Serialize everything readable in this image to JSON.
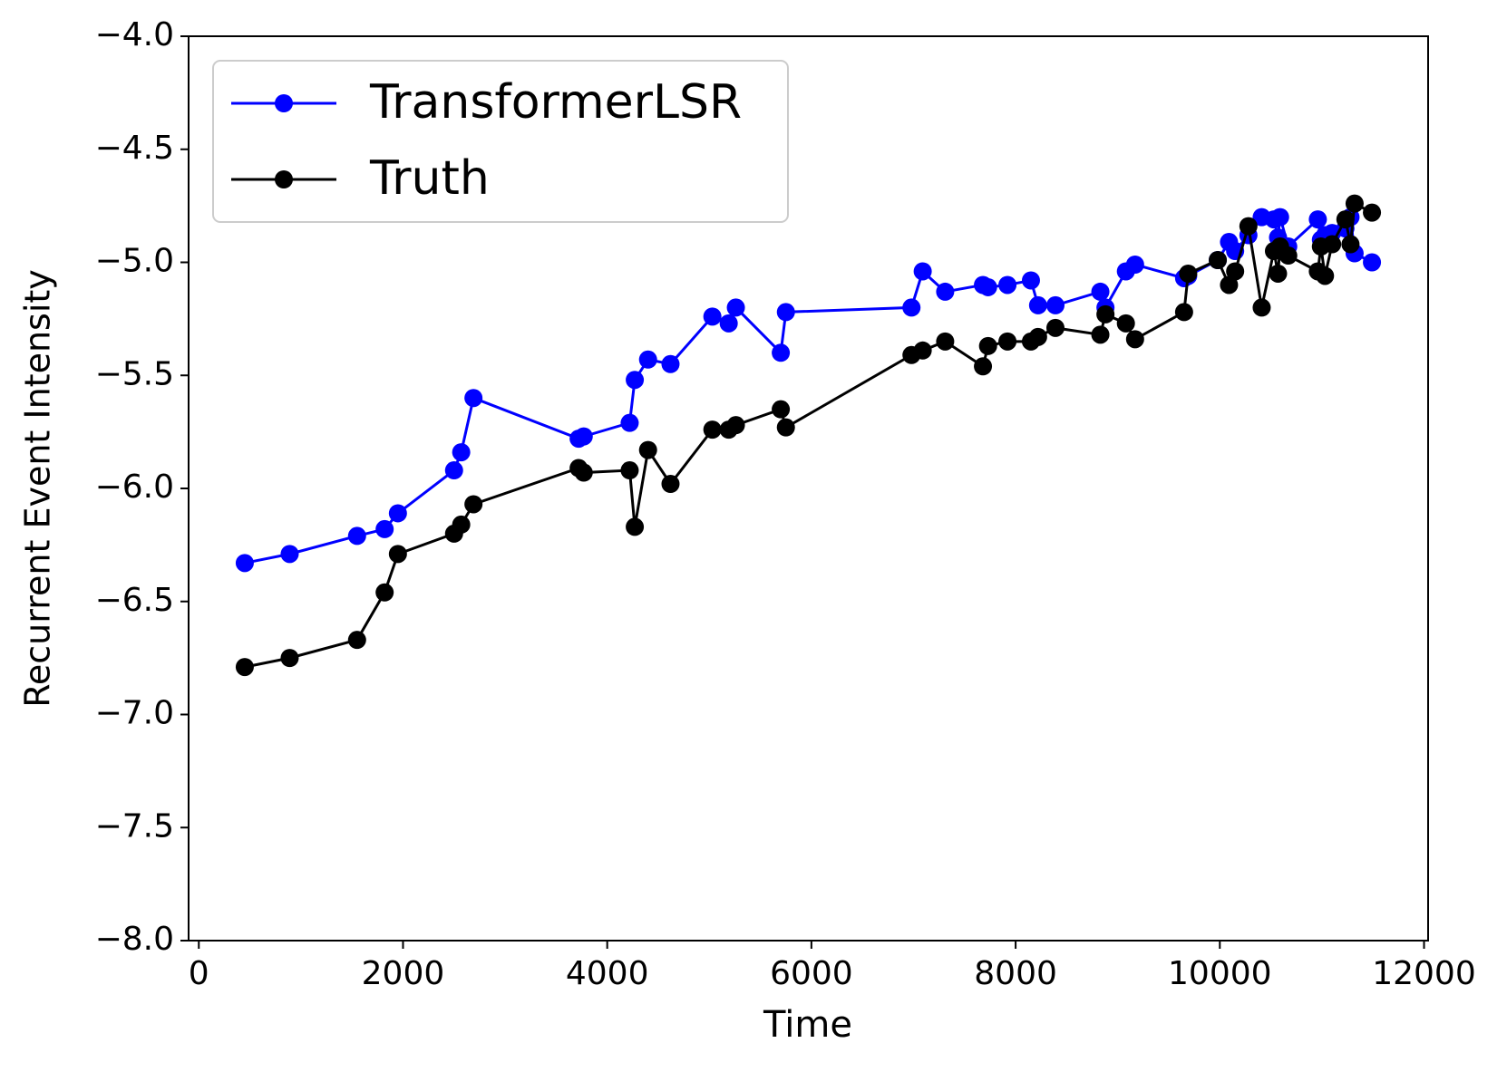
{
  "chart_data": {
    "type": "line",
    "x_label": "Time",
    "y_label": "Recurrent Event Intensity",
    "x": [
      450,
      890,
      1550,
      1820,
      1950,
      2500,
      2570,
      2690,
      3720,
      3770,
      4220,
      4270,
      4400,
      4620,
      5030,
      5190,
      5260,
      5700,
      5750,
      6980,
      7090,
      7310,
      7680,
      7730,
      7920,
      8150,
      8220,
      8390,
      8830,
      8880,
      9080,
      9170,
      9650,
      9690,
      9980,
      10090,
      10150,
      10280,
      10410,
      10530,
      10570,
      10590,
      10670,
      10960,
      10990,
      11030,
      11100,
      11230,
      11280,
      11320,
      11490
    ],
    "series": [
      {
        "name": "TransformerLSR",
        "color": "#0000ff",
        "values": [
          -6.33,
          -6.29,
          -6.21,
          -6.18,
          -6.11,
          -5.92,
          -5.84,
          -5.6,
          -5.78,
          -5.77,
          -5.71,
          -5.52,
          -5.43,
          -5.45,
          -5.24,
          -5.27,
          -5.2,
          -5.4,
          -5.22,
          -5.2,
          -5.04,
          -5.13,
          -5.1,
          -5.11,
          -5.1,
          -5.08,
          -5.19,
          -5.19,
          -5.13,
          -5.2,
          -5.04,
          -5.01,
          -5.07,
          -5.06,
          -4.99,
          -4.91,
          -4.95,
          -4.88,
          -4.8,
          -4.81,
          -4.89,
          -4.8,
          -4.93,
          -4.81,
          -4.9,
          -4.88,
          -4.87,
          -4.85,
          -4.8,
          -4.96,
          -5.0
        ]
      },
      {
        "name": "Truth",
        "color": "#000000",
        "values": [
          -6.79,
          -6.75,
          -6.67,
          -6.46,
          -6.29,
          -6.2,
          -6.16,
          -6.07,
          -5.91,
          -5.93,
          -5.92,
          -6.17,
          -5.83,
          -5.98,
          -5.74,
          -5.74,
          -5.72,
          -5.65,
          -5.73,
          -5.41,
          -5.39,
          -5.35,
          -5.46,
          -5.37,
          -5.35,
          -5.35,
          -5.33,
          -5.29,
          -5.32,
          -5.23,
          -5.27,
          -5.34,
          -5.22,
          -5.05,
          -4.99,
          -5.1,
          -5.04,
          -4.84,
          -5.2,
          -4.95,
          -5.05,
          -4.93,
          -4.97,
          -5.04,
          -4.93,
          -5.06,
          -4.92,
          -4.81,
          -4.92,
          -4.74,
          -4.78
        ]
      }
    ],
    "xlim": [
      -100,
      12040
    ],
    "xticks": [
      0,
      2000,
      4000,
      6000,
      8000,
      10000,
      12000
    ],
    "ylim": [
      -8,
      -4
    ],
    "yticks": [
      {
        "value": -8,
        "label": "−8.0"
      },
      {
        "value": -7.5,
        "label": "−7.5"
      },
      {
        "value": -7,
        "label": "−7.0"
      },
      {
        "value": -6.5,
        "label": "−6.5"
      },
      {
        "value": -6,
        "label": "−6.0"
      },
      {
        "value": -5.5,
        "label": "−5.5"
      },
      {
        "value": -5,
        "label": "−5.0"
      },
      {
        "value": -4.5,
        "label": "−4.5"
      },
      {
        "value": -4,
        "label": "−4.0"
      }
    ],
    "legend": "upper left",
    "grid": false
  }
}
